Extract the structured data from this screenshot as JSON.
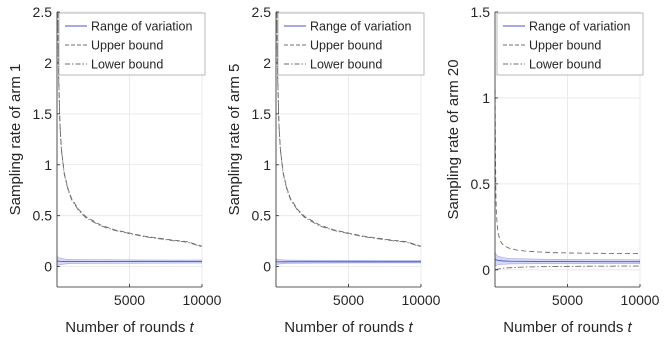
{
  "chart_data": [
    {
      "type": "line",
      "xlabel": "Number of rounds",
      "xlabel_var": "t",
      "ylabel": "Sampling rate of arm 1",
      "xlim": [
        1,
        10000
      ],
      "ylim": [
        -0.2,
        2.5
      ],
      "xticks": [
        5000,
        10000
      ],
      "yticks": [
        0,
        0.5,
        1,
        1.5,
        2,
        2.5
      ],
      "ytick_labels": [
        "0",
        "0.5",
        "1",
        "1.5",
        "2",
        "2.5"
      ],
      "grid": true,
      "legend_position": "top-right",
      "legend": [
        "Range of variation",
        "Upper bound",
        "Lower bound"
      ],
      "series": [
        {
          "name": "Range of variation",
          "x": [
            1,
            200,
            500,
            1000,
            2500,
            5000,
            7500,
            10000
          ],
          "lower": [
            0.01,
            0.02,
            0.025,
            0.03,
            0.032,
            0.033,
            0.034,
            0.035
          ],
          "upper": [
            0.1,
            0.085,
            0.075,
            0.07,
            0.068,
            0.066,
            0.065,
            0.065
          ]
        },
        {
          "name": "Upper bound",
          "x": [
            60,
            100,
            200,
            300,
            500,
            750,
            1000,
            1500,
            2000,
            3000,
            4000,
            5000,
            6000,
            7000,
            8000,
            9000,
            10000
          ],
          "values": [
            2.5,
            1.96,
            1.41,
            1.16,
            0.92,
            0.77,
            0.67,
            0.56,
            0.49,
            0.41,
            0.36,
            0.33,
            0.3,
            0.28,
            0.26,
            0.245,
            0.2
          ]
        },
        {
          "name": "Lower bound",
          "x": [
            60,
            100,
            200,
            300,
            500,
            750,
            1000,
            1500,
            2000,
            3000,
            4000,
            5000,
            6000,
            7000,
            8000,
            9000,
            10000
          ],
          "values": [
            2.5,
            1.95,
            1.4,
            1.15,
            0.91,
            0.76,
            0.66,
            0.55,
            0.48,
            0.4,
            0.355,
            0.325,
            0.295,
            0.275,
            0.255,
            0.24,
            0.195
          ]
        }
      ]
    },
    {
      "type": "line",
      "xlabel": "Number of rounds",
      "xlabel_var": "t",
      "ylabel": "Sampling rate of arm 5",
      "xlim": [
        1,
        10000
      ],
      "ylim": [
        -0.2,
        2.5
      ],
      "xticks": [
        5000,
        10000
      ],
      "yticks": [
        0,
        0.5,
        1,
        1.5,
        2,
        2.5
      ],
      "ytick_labels": [
        "0",
        "0.5",
        "1",
        "1.5",
        "2",
        "2.5"
      ],
      "grid": true,
      "legend_position": "top-right",
      "legend": [
        "Range of variation",
        "Upper bound",
        "Lower bound"
      ],
      "series": [
        {
          "name": "Range of variation",
          "x": [
            1,
            200,
            500,
            1000,
            2500,
            5000,
            7500,
            10000
          ],
          "lower": [
            0.02,
            0.025,
            0.03,
            0.032,
            0.034,
            0.035,
            0.036,
            0.036
          ],
          "upper": [
            0.075,
            0.07,
            0.066,
            0.064,
            0.062,
            0.061,
            0.06,
            0.06
          ]
        },
        {
          "name": "Upper bound",
          "x": [
            60,
            100,
            200,
            300,
            500,
            750,
            1000,
            1500,
            2000,
            3000,
            4000,
            5000,
            6000,
            7000,
            8000,
            9000,
            10000
          ],
          "values": [
            2.5,
            1.96,
            1.41,
            1.16,
            0.92,
            0.77,
            0.67,
            0.56,
            0.49,
            0.41,
            0.36,
            0.33,
            0.3,
            0.28,
            0.26,
            0.245,
            0.2
          ]
        },
        {
          "name": "Lower bound",
          "x": [
            60,
            100,
            200,
            300,
            500,
            750,
            1000,
            1500,
            2000,
            3000,
            4000,
            5000,
            6000,
            7000,
            8000,
            9000,
            10000
          ],
          "values": [
            2.5,
            1.95,
            1.4,
            1.15,
            0.91,
            0.76,
            0.66,
            0.55,
            0.48,
            0.4,
            0.355,
            0.325,
            0.295,
            0.275,
            0.255,
            0.24,
            0.195
          ]
        }
      ]
    },
    {
      "type": "line",
      "xlabel": "Number of rounds",
      "xlabel_var": "t",
      "ylabel": "Sampling rate of arm 20",
      "xlim": [
        1,
        10000
      ],
      "ylim": [
        -0.1,
        1.5
      ],
      "xticks": [
        5000,
        10000
      ],
      "yticks": [
        0,
        0.5,
        1,
        1.5
      ],
      "ytick_labels": [
        "0",
        "0.5",
        "1",
        "1.5"
      ],
      "grid": true,
      "legend_position": "top-right",
      "legend": [
        "Range of variation",
        "Upper bound",
        "Lower bound"
      ],
      "series": [
        {
          "name": "Range of variation",
          "x": [
            1,
            200,
            500,
            1000,
            2500,
            5000,
            7500,
            10000
          ],
          "lower": [
            0.02,
            0.03,
            0.032,
            0.034,
            0.035,
            0.036,
            0.036,
            0.036
          ],
          "upper": [
            0.1,
            0.08,
            0.072,
            0.066,
            0.063,
            0.06,
            0.059,
            0.058
          ]
        },
        {
          "name": "Upper bound",
          "x": [
            1,
            30,
            60,
            100,
            200,
            350,
            500,
            750,
            1000,
            1500,
            2000,
            3000,
            4000,
            5000,
            6000,
            7000,
            8000,
            9000,
            10000
          ],
          "values": [
            1.05,
            0.7,
            0.45,
            0.32,
            0.22,
            0.17,
            0.15,
            0.135,
            0.125,
            0.115,
            0.11,
            0.104,
            0.1,
            0.098,
            0.097,
            0.096,
            0.095,
            0.095,
            0.094
          ]
        },
        {
          "name": "Lower bound",
          "x": [
            1,
            100,
            300,
            600,
            1000,
            2000,
            3000,
            5000,
            7000,
            10000
          ],
          "values": [
            0.0,
            0.002,
            0.006,
            0.01,
            0.012,
            0.016,
            0.018,
            0.02,
            0.021,
            0.022
          ]
        }
      ]
    }
  ],
  "style": {
    "band_fill": "#c8ccf2",
    "band_edge": "#5a62d6",
    "band_mid": "#4b54cf",
    "bound_color": "#6f6f6f",
    "grid_color": "#e6e6e6",
    "axis_color": "#262626"
  }
}
